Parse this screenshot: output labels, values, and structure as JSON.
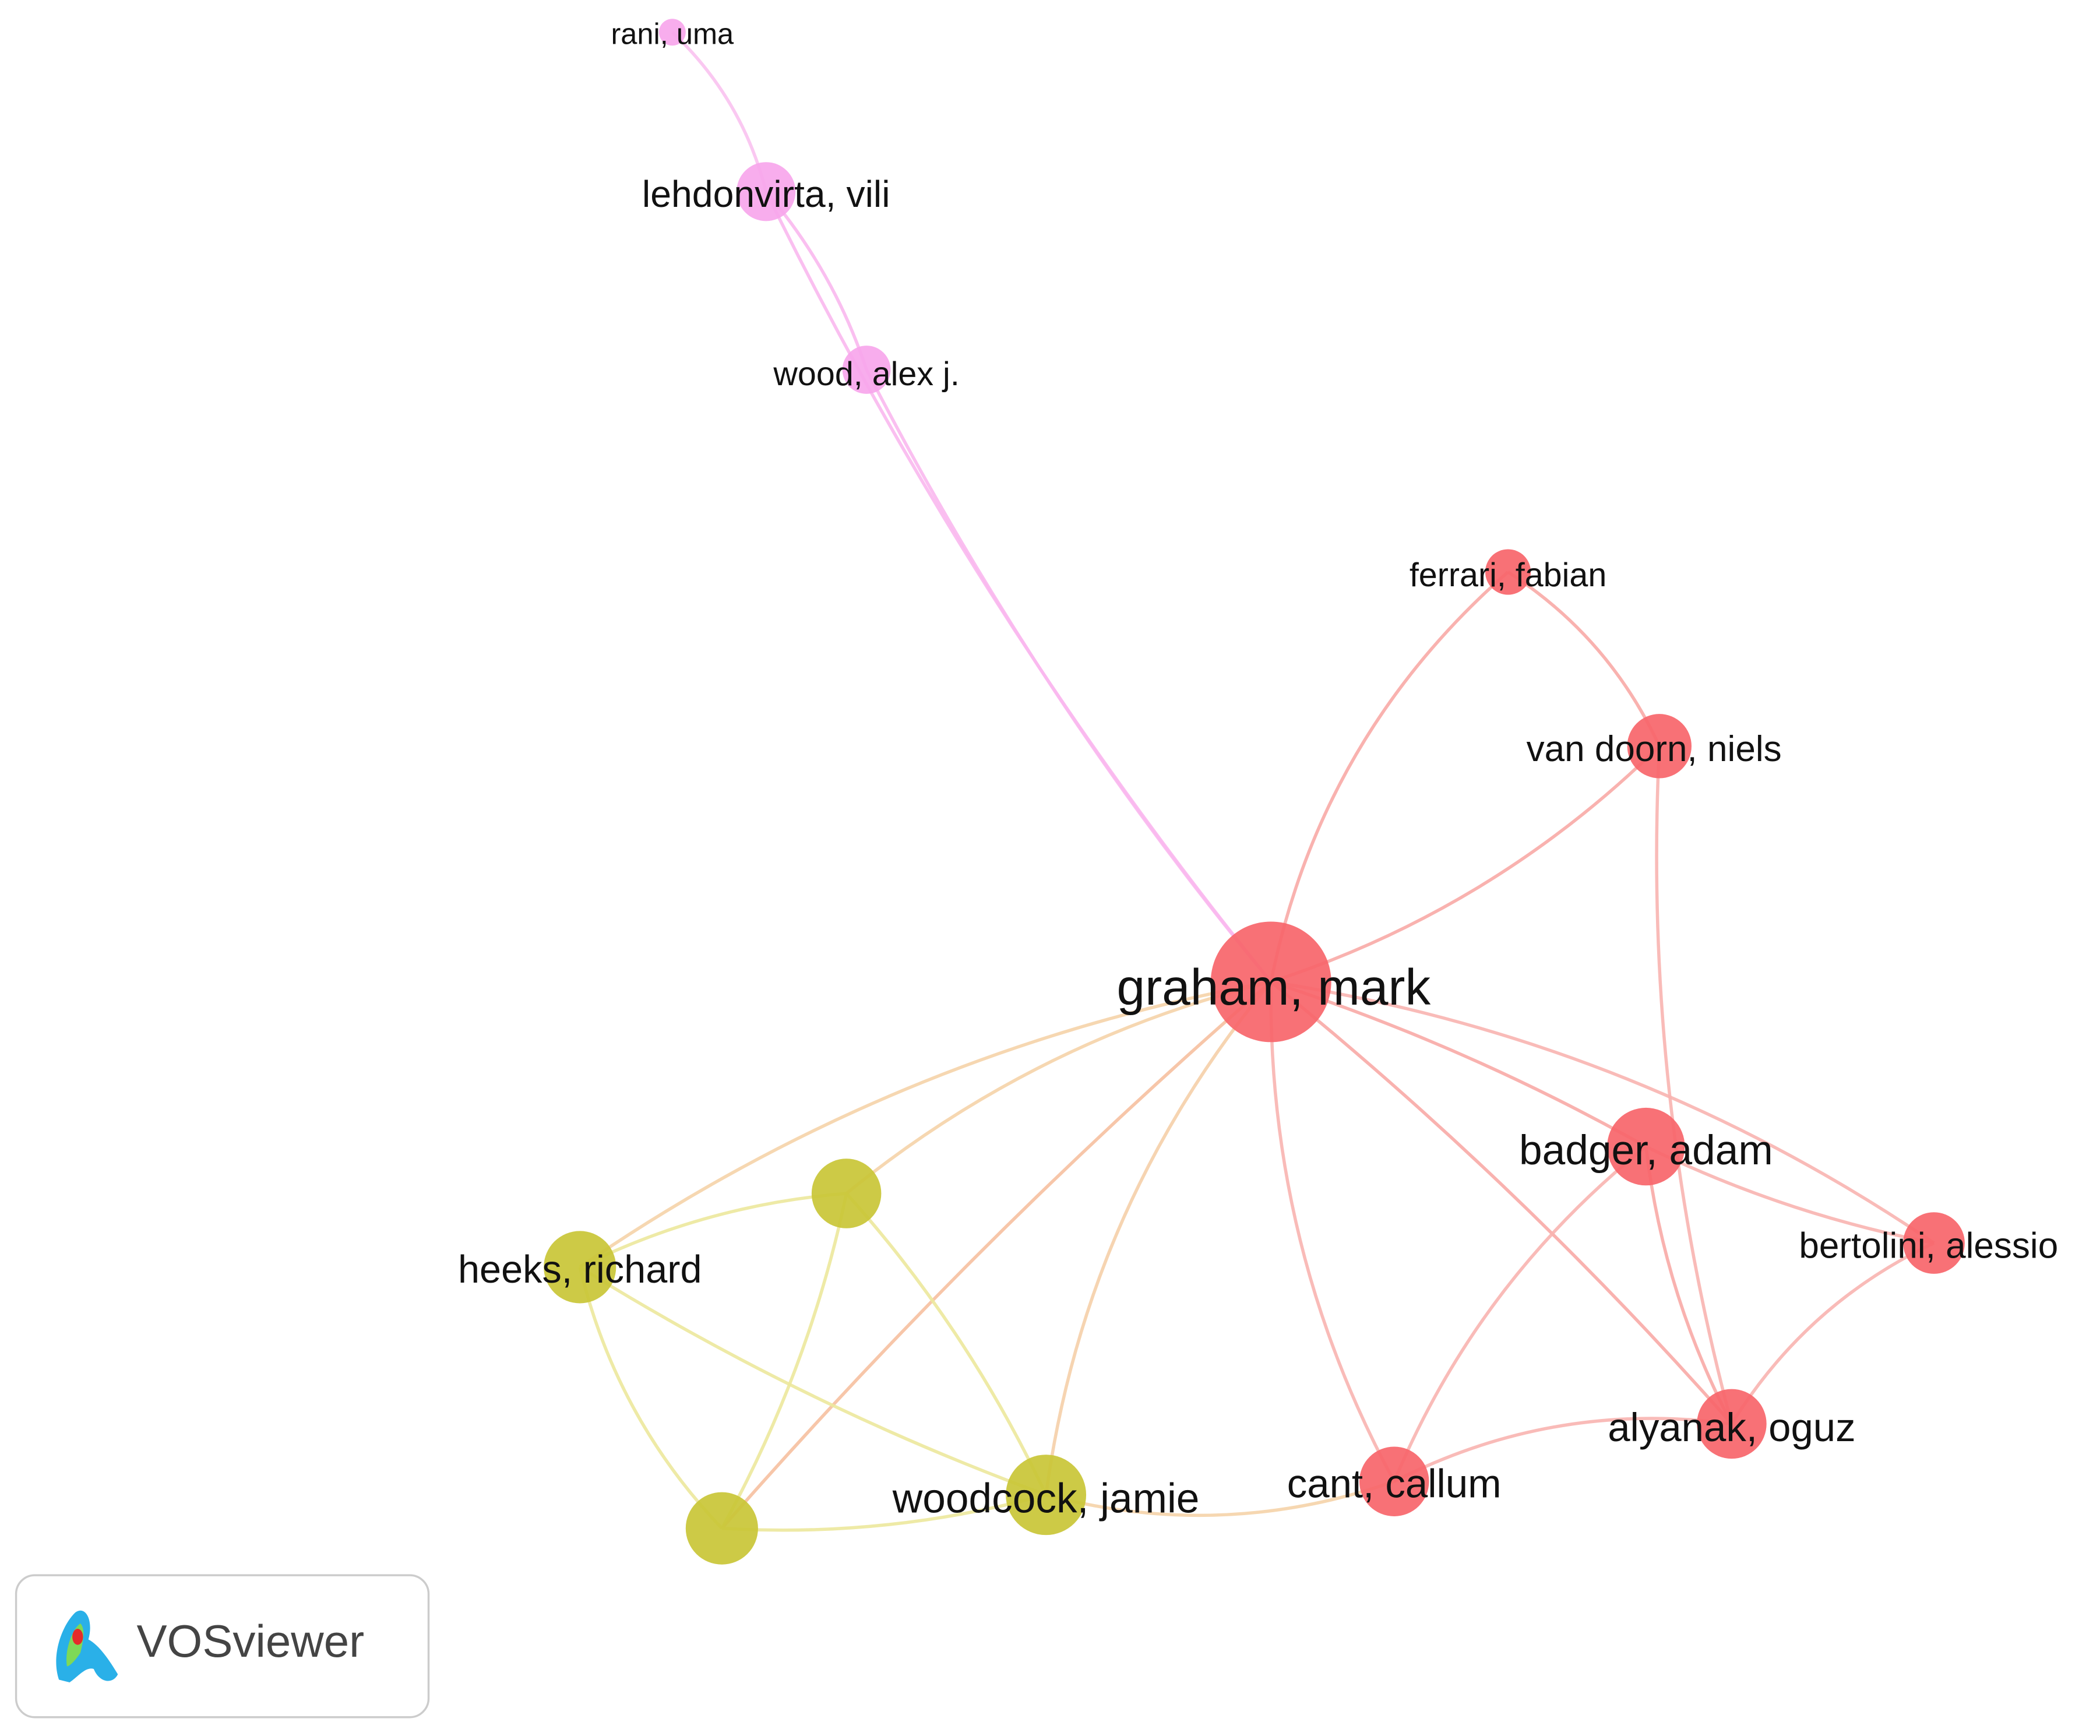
{
  "nodes": [
    {
      "label": "rani, uma"
    },
    {
      "label": "lehdonvirta, vili"
    },
    {
      "label": "wood, alex j."
    },
    {
      "label": "ferrari, fabian"
    },
    {
      "label": "van doorn, niels"
    },
    {
      "label": "graham, mark"
    },
    {
      "label": "badger, adam"
    },
    {
      "label": "bertolini, alessio"
    },
    {
      "label": "alyanak, oguz"
    },
    {
      "label": "cant, callum"
    },
    {
      "label": "woodcock, jamie"
    },
    {
      "label": "heeks, richard"
    }
  ],
  "logo": {
    "text": "VOSviewer"
  }
}
